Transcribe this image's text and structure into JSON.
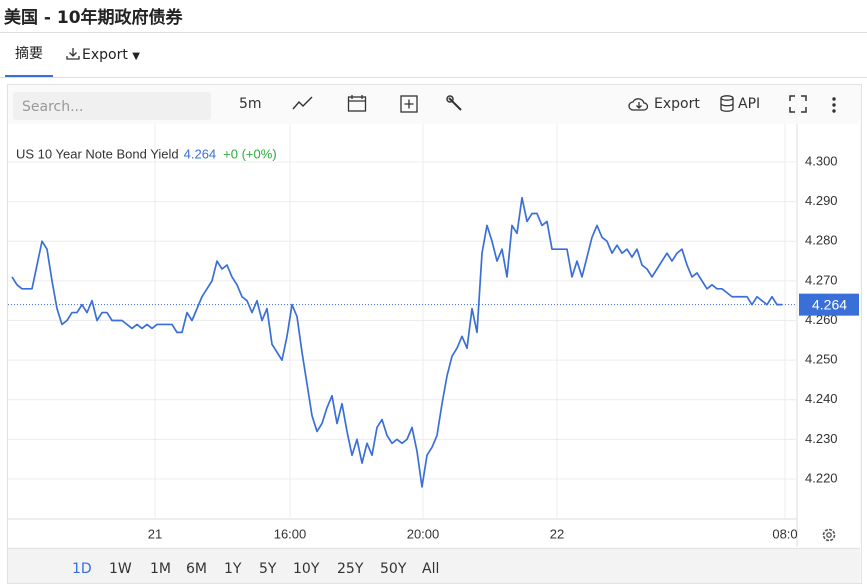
{
  "header": {
    "title": "美国 - 10年期政府债券"
  },
  "tabs": [
    "摘要",
    "Export"
  ],
  "toolbar": {
    "search": "Search...",
    "interval": "5m",
    "export": "Export",
    "api": "API"
  },
  "chart_data": {
    "type": "line",
    "legend": {
      "symbol": "US 10 Year Note Bond Yield",
      "change": "+0 (+0%)"
    },
    "last_value": 4.264,
    "series": [
      {
        "name": "US 10 Year Note Bond Yield",
        "color": "#3a6fd8",
        "values": [
          4.271,
          4.269,
          4.268,
          4.268,
          4.268,
          4.274,
          4.28,
          4.278,
          4.27,
          4.263,
          4.259,
          4.26,
          4.262,
          4.262,
          4.264,
          4.262,
          4.265,
          4.26,
          4.262,
          4.262,
          4.26,
          4.26,
          4.26,
          4.259,
          4.258,
          4.259,
          4.258,
          4.259,
          4.258,
          4.259,
          4.259,
          4.259,
          4.259,
          4.257,
          4.257,
          4.262,
          4.26,
          4.263,
          4.266,
          4.268,
          4.27,
          4.275,
          4.273,
          4.274,
          4.271,
          4.269,
          4.266,
          4.265,
          4.262,
          4.265,
          4.26,
          4.263,
          4.254,
          4.252,
          4.25,
          4.256,
          4.264,
          4.261,
          4.252,
          4.244,
          4.236,
          4.232,
          4.234,
          4.238,
          4.241,
          4.234,
          4.239,
          4.232,
          4.226,
          4.23,
          4.224,
          4.229,
          4.226,
          4.233,
          4.235,
          4.231,
          4.229,
          4.23,
          4.229,
          4.23,
          4.233,
          4.227,
          4.218,
          4.226,
          4.228,
          4.231,
          4.239,
          4.246,
          4.251,
          4.253,
          4.256,
          4.253,
          4.263,
          4.257,
          4.277,
          4.284,
          4.28,
          4.275,
          4.278,
          4.271,
          4.284,
          4.282,
          4.291,
          4.285,
          4.287,
          4.287,
          4.284,
          4.285,
          4.278,
          4.278,
          4.278,
          4.278,
          4.271,
          4.275,
          4.271,
          4.276,
          4.281,
          4.284,
          4.281,
          4.28,
          4.277,
          4.279,
          4.277,
          4.278,
          4.276,
          4.278,
          4.274,
          4.273,
          4.271,
          4.273,
          4.275,
          4.277,
          4.275,
          4.277,
          4.278,
          4.274,
          4.271,
          4.272,
          4.27,
          4.268,
          4.269,
          4.268,
          4.268,
          4.267,
          4.266,
          4.266,
          4.266,
          4.266,
          4.264,
          4.266,
          4.265,
          4.264,
          4.266,
          4.264,
          4.264
        ]
      }
    ],
    "xlim": [
      0,
      157
    ],
    "xticks": [
      {
        "value": 28.6,
        "label": "21"
      },
      {
        "value": 55.6,
        "label": "16:00"
      },
      {
        "value": 82.2,
        "label": "20:00"
      },
      {
        "value": 109,
        "label": "22"
      },
      {
        "value": 154.6,
        "label": "08:0"
      }
    ],
    "ylim": [
      4.21,
      4.31
    ],
    "yticks": [
      {
        "value": 4.22,
        "label": "4.220"
      },
      {
        "value": 4.23,
        "label": "4.230"
      },
      {
        "value": 4.24,
        "label": "4.240"
      },
      {
        "value": 4.25,
        "label": "4.250"
      },
      {
        "value": 4.26,
        "label": "4.260"
      },
      {
        "value": 4.27,
        "label": "4.270"
      },
      {
        "value": 4.28,
        "label": "4.280"
      },
      {
        "value": 4.29,
        "label": "4.290"
      },
      {
        "value": 4.3,
        "label": "4.300"
      }
    ],
    "grid": true
  },
  "ranges": [
    "1D",
    "1W",
    "1M",
    "6M",
    "1Y",
    "5Y",
    "10Y",
    "25Y",
    "50Y",
    "All"
  ]
}
